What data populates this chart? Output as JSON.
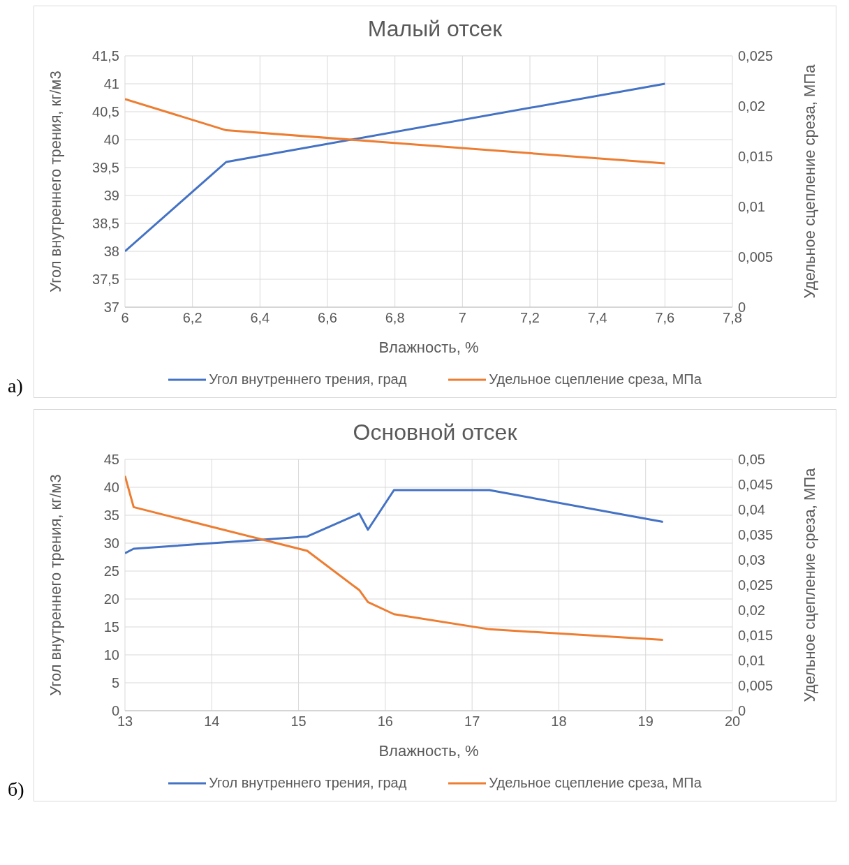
{
  "chart_data": [
    {
      "type": "line",
      "title": "Малый отсек",
      "xlabel": "Влажность, %",
      "ylabel": "Угол внутреннего трения, кг/м3",
      "y2label": "Удельное сцепление среза, МПа",
      "annotations": [
        "а)"
      ],
      "x": [
        6,
        6.3,
        7.6
      ],
      "series": [
        {
          "name": "Угол внутреннего трения, град",
          "color": "#4472c4",
          "values": [
            38,
            39.6,
            41
          ]
        },
        {
          "name": "Удельное сцепление среза, МПа",
          "color": "#ed7d31",
          "axis": "y2",
          "values": [
            0.0207,
            0.0176,
            0.0143
          ]
        }
      ],
      "xlim": [
        6,
        7.8
      ],
      "xticks": [
        6,
        {
          "value": 6.2,
          "label": "6,2"
        },
        {
          "value": 6.4,
          "label": "6,4"
        },
        {
          "value": 6.6,
          "label": "6,6"
        },
        {
          "value": 6.8,
          "label": "6,8"
        },
        7,
        {
          "value": 7.2,
          "label": "7,2"
        },
        {
          "value": 7.4,
          "label": "7,4"
        },
        {
          "value": 7.6,
          "label": "7,6"
        },
        {
          "value": 7.8,
          "label": "7,8"
        }
      ],
      "ylim": [
        37,
        41.5
      ],
      "yticks": [
        37,
        {
          "value": 37.5,
          "label": "37,5"
        },
        38,
        {
          "value": 38.5,
          "label": "38,5"
        },
        39,
        {
          "value": 39.5,
          "label": "39,5"
        },
        40,
        {
          "value": 40.5,
          "label": "40,5"
        },
        41,
        {
          "value": 41.5,
          "label": "41,5"
        }
      ],
      "y2lim": [
        0,
        0.025
      ],
      "y2ticks": [
        0,
        {
          "value": 0.005,
          "label": "0,005"
        },
        {
          "value": 0.01,
          "label": "0,01"
        },
        {
          "value": 0.015,
          "label": "0,015"
        },
        {
          "value": 0.02,
          "label": "0,02"
        },
        {
          "value": 0.025,
          "label": "0,025"
        }
      ],
      "grid": true,
      "legend": "bottom",
      "marker": "none",
      "line_style": "solid"
    },
    {
      "type": "line",
      "title": "Основной отсек",
      "xlabel": "Влажность, %",
      "ylabel": "Угол внутреннего трения, кг/м3",
      "y2label": "Удельное сцепление среза, МПа",
      "annotations": [
        "б)"
      ],
      "x": [
        13,
        13.1,
        15.1,
        15.7,
        15.8,
        16.1,
        17.2,
        19.2
      ],
      "series": [
        {
          "name": "Угол внутреннего трения, град",
          "color": "#4472c4",
          "values": [
            28.2,
            29,
            31.2,
            35.3,
            32.4,
            39.5,
            39.5,
            33.8
          ]
        },
        {
          "name": "Удельное сцепление среза, МПа",
          "color": "#ed7d31",
          "axis": "y2",
          "values": [
            0.0467,
            0.0405,
            0.0318,
            0.024,
            0.0216,
            0.0192,
            0.0162,
            0.0141
          ]
        }
      ],
      "xlim": [
        13,
        20
      ],
      "xticks": [
        13,
        14,
        15,
        16,
        17,
        18,
        19,
        20
      ],
      "ylim": [
        0,
        45
      ],
      "yticks": [
        0,
        5,
        10,
        15,
        20,
        25,
        30,
        35,
        40,
        45
      ],
      "y2lim": [
        0,
        0.05
      ],
      "y2ticks": [
        0,
        {
          "value": 0.005,
          "label": "0,005"
        },
        {
          "value": 0.01,
          "label": "0,01"
        },
        {
          "value": 0.015,
          "label": "0,015"
        },
        {
          "value": 0.02,
          "label": "0,02"
        },
        {
          "value": 0.025,
          "label": "0,025"
        },
        {
          "value": 0.03,
          "label": "0,03"
        },
        {
          "value": 0.035,
          "label": "0,035"
        },
        {
          "value": 0.04,
          "label": "0,04"
        },
        {
          "value": 0.045,
          "label": "0,045"
        },
        {
          "value": 0.05,
          "label": "0,05"
        }
      ],
      "grid": true,
      "legend": "bottom",
      "marker": "none",
      "line_style": "solid"
    }
  ]
}
